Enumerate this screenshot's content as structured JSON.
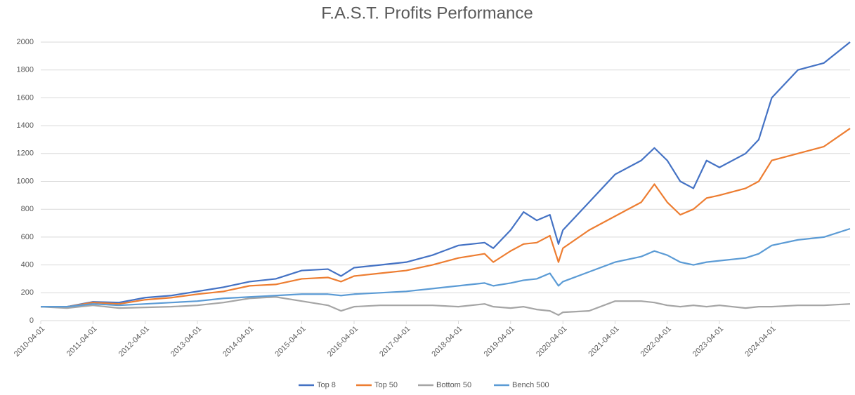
{
  "chart_data": {
    "type": "line",
    "title": "F.A.S.T. Profits Performance",
    "x": [
      "2010-04-01",
      "2010-10-01",
      "2011-04-01",
      "2011-10-01",
      "2012-04-01",
      "2012-10-01",
      "2013-04-01",
      "2013-10-01",
      "2014-04-01",
      "2014-10-01",
      "2015-04-01",
      "2015-10-01",
      "2016-01-01",
      "2016-04-01",
      "2016-10-01",
      "2017-04-01",
      "2017-10-01",
      "2018-04-01",
      "2018-10-01",
      "2018-12-01",
      "2019-04-01",
      "2019-07-01",
      "2019-10-01",
      "2020-01-01",
      "2020-03-01",
      "2020-04-01",
      "2020-10-01",
      "2021-04-01",
      "2021-10-01",
      "2022-01-01",
      "2022-04-01",
      "2022-07-01",
      "2022-10-01",
      "2023-01-01",
      "2023-04-01",
      "2023-10-01",
      "2024-01-01",
      "2024-04-01",
      "2024-10-01",
      "2025-04-01",
      "2025-10-01"
    ],
    "series": [
      {
        "name": "Top 8",
        "color": "#4472c4",
        "values": [
          100,
          100,
          135,
          130,
          165,
          180,
          210,
          240,
          280,
          300,
          360,
          370,
          320,
          380,
          400,
          420,
          470,
          540,
          560,
          520,
          650,
          780,
          720,
          760,
          550,
          650,
          850,
          1050,
          1150,
          1240,
          1150,
          1000,
          950,
          1150,
          1100,
          1200,
          1300,
          1600,
          1800,
          1850,
          2000
        ]
      },
      {
        "name": "Top 50",
        "color": "#ed7d31",
        "values": [
          100,
          100,
          130,
          120,
          150,
          165,
          190,
          210,
          250,
          260,
          300,
          310,
          280,
          320,
          340,
          360,
          400,
          450,
          480,
          420,
          500,
          550,
          560,
          610,
          420,
          520,
          650,
          750,
          850,
          980,
          850,
          760,
          800,
          880,
          900,
          950,
          1000,
          1150,
          1200,
          1250,
          1380
        ]
      },
      {
        "name": "Bottom 50",
        "color": "#a5a5a5",
        "values": [
          100,
          90,
          110,
          90,
          95,
          100,
          110,
          130,
          160,
          170,
          140,
          110,
          70,
          100,
          110,
          110,
          110,
          100,
          120,
          100,
          90,
          100,
          80,
          70,
          40,
          60,
          70,
          140,
          140,
          130,
          110,
          100,
          110,
          100,
          110,
          90,
          100,
          100,
          110,
          110,
          120
        ]
      },
      {
        "name": "Bench 500",
        "color": "#5b9bd5",
        "values": [
          100,
          100,
          120,
          110,
          120,
          130,
          140,
          160,
          170,
          180,
          190,
          190,
          180,
          190,
          200,
          210,
          230,
          250,
          270,
          250,
          270,
          290,
          300,
          340,
          250,
          280,
          350,
          420,
          460,
          500,
          470,
          420,
          400,
          420,
          430,
          450,
          480,
          540,
          580,
          600,
          660
        ]
      }
    ],
    "xlim": [
      "2010-04-01",
      "2025-10-01"
    ],
    "xticks": [
      "2010-04-01",
      "2011-04-01",
      "2012-04-01",
      "2013-04-01",
      "2014-04-01",
      "2015-04-01",
      "2016-04-01",
      "2017-04-01",
      "2018-04-01",
      "2019-04-01",
      "2020-04-01",
      "2021-04-01",
      "2022-04-01",
      "2023-04-01",
      "2024-04-01"
    ],
    "ylim": [
      0,
      2000
    ],
    "yticks": [
      0,
      200,
      400,
      600,
      800,
      1000,
      1200,
      1400,
      1600,
      1800,
      2000
    ],
    "grid": true,
    "legend": "bottom"
  }
}
